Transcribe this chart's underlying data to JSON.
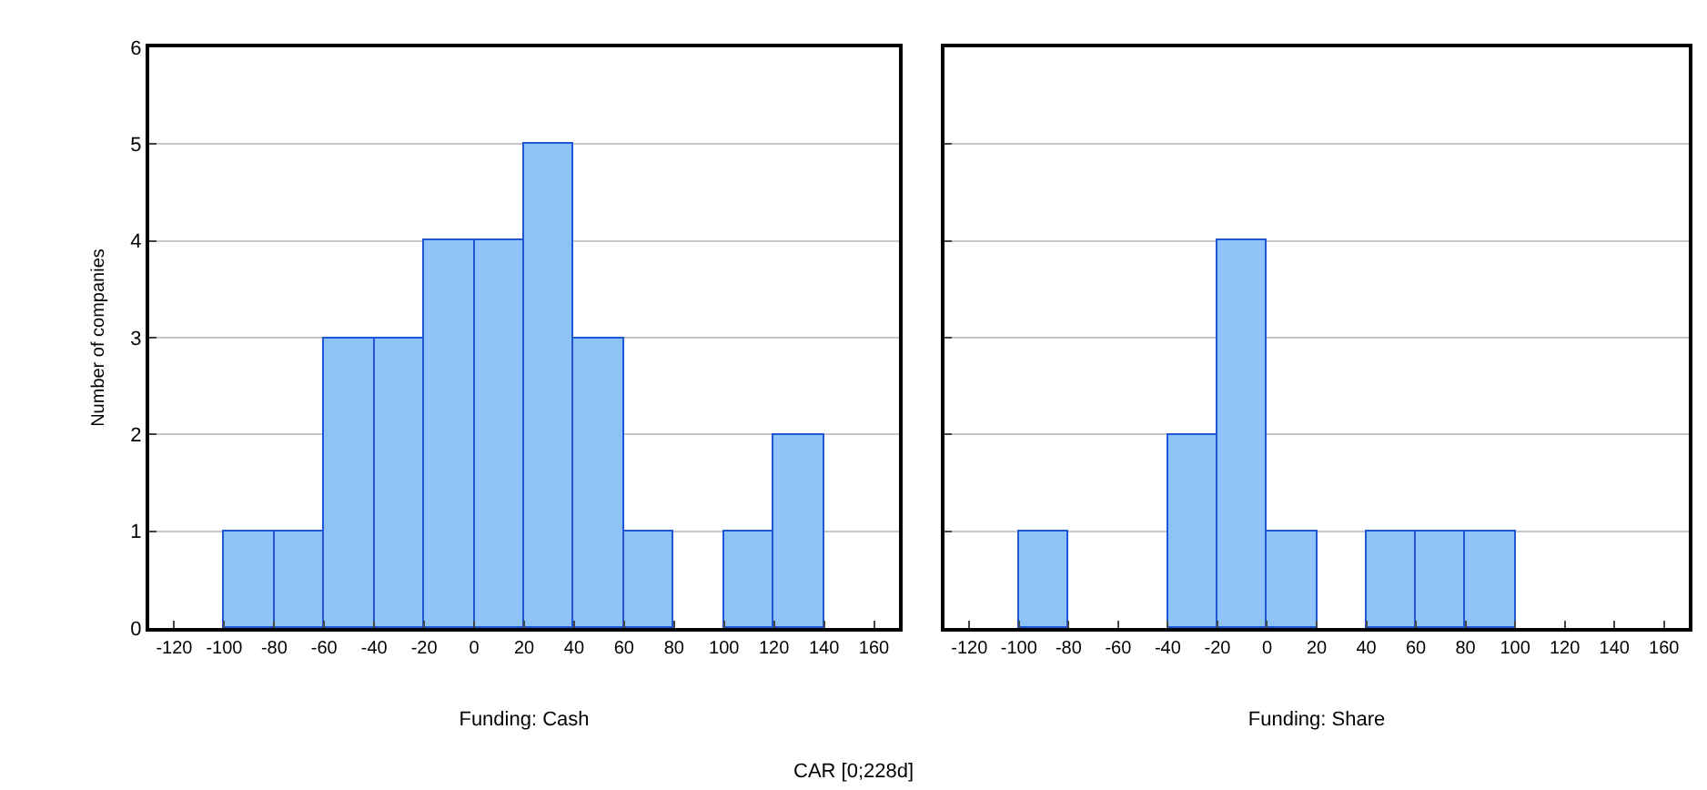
{
  "chart_data": [
    {
      "type": "histogram",
      "xlabel": "Funding: Cash",
      "ylabel": "Number of companies",
      "annotations": [
        "CAR [0;228d]"
      ],
      "bins": [
        -100,
        -80,
        -60,
        -40,
        -20,
        0,
        20,
        40,
        60,
        80,
        100,
        120,
        140
      ],
      "values": [
        1,
        1,
        3,
        3,
        4,
        4,
        5,
        3,
        1,
        0,
        1,
        2
      ],
      "color": "#8ec3f7",
      "xlim": [
        -130,
        170
      ],
      "xticks": [
        -120,
        -100,
        -80,
        -60,
        -40,
        -20,
        0,
        20,
        40,
        60,
        80,
        100,
        120,
        140,
        160
      ],
      "ylim": [
        0,
        6
      ],
      "yticks": [
        0,
        1,
        2,
        3,
        4,
        5,
        6
      ],
      "grid": "y"
    },
    {
      "type": "histogram",
      "xlabel": "Funding: Share",
      "bins": [
        -100,
        -80,
        -60,
        -40,
        -20,
        0,
        20,
        40,
        60,
        80,
        100
      ],
      "values": [
        1,
        0,
        0,
        2,
        4,
        1,
        0,
        1,
        1,
        1
      ],
      "color": "#8ec3f7",
      "xlim": [
        -130,
        170
      ],
      "xticks": [
        -120,
        -100,
        -80,
        -60,
        -40,
        -20,
        0,
        20,
        40,
        60,
        80,
        100,
        120,
        140,
        160
      ],
      "ylim": [
        0,
        6
      ],
      "yticks": [
        0,
        1,
        2,
        3,
        4,
        5,
        6
      ],
      "grid": "y",
      "tick_labels": "x"
    }
  ]
}
